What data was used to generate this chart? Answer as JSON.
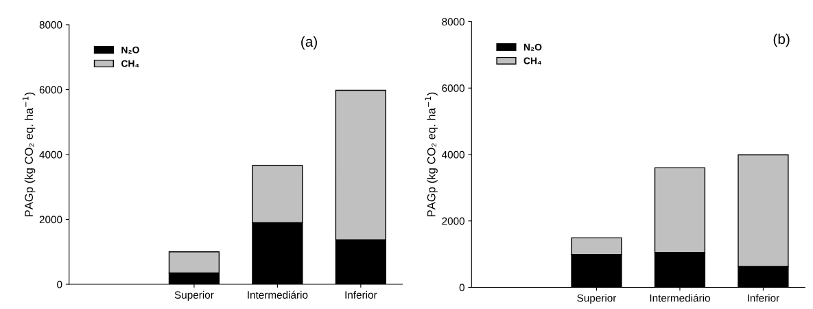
{
  "chart_data": [
    {
      "type": "bar",
      "title": "(a)",
      "stacked": true,
      "categories": [
        null,
        "Superior",
        "Intermediário",
        "Inferior"
      ],
      "ylabel": "PAGp (kg CO₂ eq. ha$^{−1}$)",
      "ylim": [
        0,
        8000
      ],
      "yticks": [
        0,
        2000,
        4000,
        6000,
        8000
      ],
      "legend": "top left",
      "grid": false,
      "series": [
        {
          "name": "N₂O",
          "color": "#000000",
          "values": [
            null,
            350,
            1900,
            1370
          ]
        },
        {
          "name": "CH₄",
          "color": "#c0c0c0",
          "values": [
            null,
            650,
            1760,
            4610
          ]
        }
      ]
    },
    {
      "type": "bar",
      "title": "(b)",
      "stacked": true,
      "categories": [
        null,
        "Superior",
        "Intermediário",
        "Inferior"
      ],
      "ylabel": "PAGp (kg CO₂ eq. ha$^{−1}$)",
      "ylim": [
        0,
        8000
      ],
      "yticks": [
        0,
        2000,
        4000,
        6000,
        8000
      ],
      "legend": "top left",
      "grid": false,
      "series": [
        {
          "name": "N₂O",
          "color": "#000000",
          "values": [
            null,
            990,
            1050,
            630
          ]
        },
        {
          "name": "CH₄",
          "color": "#c0c0c0",
          "values": [
            null,
            500,
            2550,
            3360
          ]
        }
      ]
    }
  ]
}
